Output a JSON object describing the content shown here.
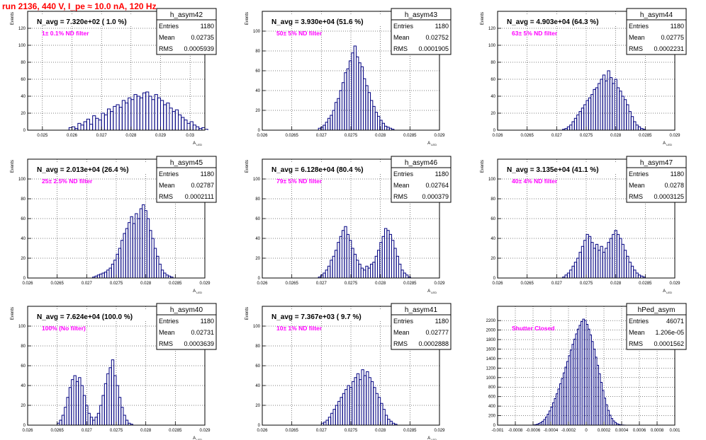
{
  "page": {
    "title": "run 2136,   440 V, I_pe ≈ 10.0 nA, 120 Hz"
  },
  "chart_data": [
    {
      "type": "histogram",
      "stat_title": "h_asym42",
      "header": "N_avg = 7.320e+02 ( 1.0 %)",
      "filter_label": "1± 0.1% ND filter",
      "stats": {
        "entries": "1180",
        "mean": "0.02735",
        "rms": "0.0005939"
      },
      "ylabel": "Events",
      "xlabel": "A_{LED}",
      "xlim": [
        0.0245,
        0.0305
      ],
      "ylim": [
        0,
        140
      ],
      "xticks": [
        0.025,
        0.026,
        0.027,
        0.028,
        0.029,
        0.03
      ],
      "xtick_labels": [
        "0.025",
        "0.026",
        "0.027",
        "0.028",
        "0.029",
        "0.03"
      ],
      "yticks": [
        0,
        20,
        40,
        60,
        80,
        100,
        120
      ],
      "bins": {
        "start": 0.0259,
        "width": 0.0001,
        "values": [
          3,
          4,
          2,
          8,
          6,
          10,
          13,
          7,
          17,
          14,
          12,
          20,
          18,
          25,
          22,
          28,
          30,
          27,
          35,
          32,
          38,
          36,
          42,
          40,
          38,
          44,
          45,
          40,
          36,
          42,
          38,
          35,
          30,
          32,
          26,
          22,
          24,
          18,
          15,
          12,
          8,
          10,
          6,
          4,
          2,
          3,
          1
        ]
      }
    },
    {
      "type": "histogram",
      "stat_title": "h_asym43",
      "header": "N_avg = 3.930e+04 (51.6 %)",
      "filter_label": "50± 5% ND filter",
      "stats": {
        "entries": "1180",
        "mean": "0.02752",
        "rms": "0.0001905"
      },
      "ylabel": "Events",
      "xlabel": "A_{LED}",
      "xlim": [
        0.026,
        0.029
      ],
      "ylim": [
        0,
        120
      ],
      "xticks": [
        0.026,
        0.0265,
        0.027,
        0.0275,
        0.028,
        0.0285,
        0.029
      ],
      "xtick_labels": [
        "0.026",
        "0.0265",
        "0.027",
        "0.0275",
        "0.028",
        "0.0285",
        "0.029"
      ],
      "yticks": [
        0,
        20,
        40,
        60,
        80,
        100
      ],
      "bins": {
        "start": 0.02695,
        "width": 4e-05,
        "values": [
          2,
          3,
          5,
          8,
          12,
          15,
          20,
          28,
          32,
          40,
          48,
          58,
          62,
          70,
          78,
          85,
          74,
          68,
          64,
          52,
          45,
          38,
          30,
          24,
          18,
          14,
          10,
          7,
          4,
          3,
          2,
          1
        ]
      }
    },
    {
      "type": "histogram",
      "stat_title": "h_asym44",
      "header": "N_avg = 4.903e+04 (64.3 %)",
      "filter_label": "63± 5% ND filter",
      "stats": {
        "entries": "1180",
        "mean": "0.02775",
        "rms": "0.0002231"
      },
      "ylabel": "Events",
      "xlabel": "A_{LED}",
      "xlim": [
        0.026,
        0.029
      ],
      "ylim": [
        0,
        140
      ],
      "xticks": [
        0.026,
        0.0265,
        0.027,
        0.0275,
        0.028,
        0.0285,
        0.029
      ],
      "xtick_labels": [
        "0.026",
        "0.0265",
        "0.027",
        "0.0275",
        "0.028",
        "0.0285",
        "0.029"
      ],
      "yticks": [
        0,
        20,
        40,
        60,
        80,
        100,
        120
      ],
      "bins": {
        "start": 0.0271,
        "width": 4e-05,
        "values": [
          1,
          2,
          4,
          6,
          10,
          14,
          18,
          22,
          26,
          30,
          35,
          38,
          42,
          48,
          50,
          55,
          60,
          65,
          58,
          70,
          62,
          55,
          60,
          50,
          46,
          40,
          36,
          30,
          22,
          16,
          10,
          6,
          4,
          2,
          1
        ]
      }
    },
    {
      "type": "histogram",
      "stat_title": "h_asym45",
      "header": "N_avg = 2.013e+04 (26.4 %)",
      "filter_label": "25± 2.5% ND filter",
      "stats": {
        "entries": "1180",
        "mean": "0.02787",
        "rms": "0.0002111"
      },
      "ylabel": "Events",
      "xlabel": "A_{LED}",
      "xlim": [
        0.026,
        0.029
      ],
      "ylim": [
        0,
        120
      ],
      "xticks": [
        0.026,
        0.0265,
        0.027,
        0.0275,
        0.028,
        0.0285,
        0.029
      ],
      "xtick_labels": [
        "0.026",
        "0.0265",
        "0.027",
        "0.0275",
        "0.028",
        "0.0285",
        "0.029"
      ],
      "yticks": [
        0,
        20,
        40,
        60,
        80,
        100
      ],
      "bins": {
        "start": 0.0271,
        "width": 4e-05,
        "values": [
          1,
          2,
          3,
          4,
          5,
          6,
          8,
          10,
          14,
          18,
          24,
          30,
          38,
          45,
          50,
          56,
          62,
          55,
          65,
          60,
          70,
          74,
          68,
          60,
          48,
          40,
          30,
          22,
          14,
          8,
          5,
          3,
          2,
          1
        ]
      }
    },
    {
      "type": "histogram",
      "stat_title": "h_asym46",
      "header": "N_avg = 6.128e+04 (80.4 %)",
      "filter_label": "79± 5% ND filter",
      "stats": {
        "entries": "1180",
        "mean": "0.02764",
        "rms": "0.000379"
      },
      "ylabel": "Events",
      "xlabel": "A_{LED}",
      "xlim": [
        0.026,
        0.029
      ],
      "ylim": [
        0,
        120
      ],
      "xticks": [
        0.026,
        0.0265,
        0.027,
        0.0275,
        0.028,
        0.0285,
        0.029
      ],
      "xtick_labels": [
        "0.026",
        "0.0265",
        "0.027",
        "0.0275",
        "0.028",
        "0.0285",
        "0.029"
      ],
      "yticks": [
        0,
        20,
        40,
        60,
        80,
        100
      ],
      "bins": {
        "start": 0.02695,
        "width": 4e-05,
        "values": [
          1,
          3,
          5,
          8,
          12,
          18,
          22,
          28,
          36,
          42,
          48,
          52,
          44,
          38,
          30,
          24,
          18,
          14,
          10,
          8,
          12,
          10,
          14,
          16,
          22,
          28,
          36,
          42,
          50,
          48,
          44,
          38,
          30,
          22,
          14,
          8,
          5,
          3,
          1
        ]
      }
    },
    {
      "type": "histogram",
      "stat_title": "h_asym47",
      "header": "N_avg = 3.135e+04 (41.1 %)",
      "filter_label": "40± 4% ND filter",
      "stats": {
        "entries": "1180",
        "mean": "0.0278",
        "rms": "0.0003125"
      },
      "ylabel": "Events",
      "xlabel": "A_{LED}",
      "xlim": [
        0.026,
        0.029
      ],
      "ylim": [
        0,
        120
      ],
      "xticks": [
        0.026,
        0.0265,
        0.027,
        0.0275,
        0.028,
        0.0285,
        0.029
      ],
      "xtick_labels": [
        "0.026",
        "0.0265",
        "0.027",
        "0.0275",
        "0.028",
        "0.0285",
        "0.029"
      ],
      "yticks": [
        0,
        20,
        40,
        60,
        80,
        100
      ],
      "bins": {
        "start": 0.0271,
        "width": 4e-05,
        "values": [
          1,
          3,
          5,
          8,
          12,
          16,
          20,
          26,
          32,
          38,
          44,
          42,
          36,
          30,
          34,
          28,
          32,
          26,
          30,
          36,
          40,
          44,
          48,
          44,
          40,
          34,
          28,
          22,
          16,
          12,
          8,
          5,
          3,
          2,
          1
        ]
      }
    },
    {
      "type": "histogram",
      "stat_title": "h_asym40",
      "header": "N_avg = 7.624e+04 (100.0 %)",
      "filter_label": "100% (No filter)",
      "stats": {
        "entries": "1180",
        "mean": "0.02731",
        "rms": "0.0003639"
      },
      "ylabel": "Events",
      "xlabel": "A_{LED}",
      "xlim": [
        0.026,
        0.029
      ],
      "ylim": [
        0,
        120
      ],
      "xticks": [
        0.026,
        0.0265,
        0.027,
        0.0275,
        0.028,
        0.0285,
        0.029
      ],
      "xtick_labels": [
        "0.026",
        "0.0265",
        "0.027",
        "0.0275",
        "0.028",
        "0.0285",
        "0.029"
      ],
      "yticks": [
        0,
        20,
        40,
        60,
        80,
        100
      ],
      "bins": {
        "start": 0.0265,
        "width": 4e-05,
        "values": [
          2,
          5,
          10,
          18,
          28,
          38,
          46,
          50,
          44,
          48,
          40,
          30,
          20,
          12,
          8,
          5,
          8,
          12,
          20,
          30,
          42,
          52,
          58,
          66,
          50,
          40,
          28,
          18,
          10,
          5,
          2,
          1
        ]
      }
    },
    {
      "type": "histogram",
      "stat_title": "h_asym41",
      "header": "N_avg = 7.367e+03 ( 9.7 %)",
      "filter_label": "10± 1% ND filter",
      "stats": {
        "entries": "1180",
        "mean": "0.02777",
        "rms": "0.0002888"
      },
      "ylabel": "Events",
      "xlabel": "A_{LED}",
      "xlim": [
        0.026,
        0.029
      ],
      "ylim": [
        0,
        120
      ],
      "xticks": [
        0.026,
        0.0265,
        0.027,
        0.0275,
        0.028,
        0.0285,
        0.029
      ],
      "xtick_labels": [
        "0.026",
        "0.0265",
        "0.027",
        "0.0275",
        "0.028",
        "0.0285",
        "0.029"
      ],
      "yticks": [
        0,
        20,
        40,
        60,
        80,
        100
      ],
      "bins": {
        "start": 0.027,
        "width": 4e-05,
        "values": [
          2,
          3,
          5,
          8,
          12,
          16,
          20,
          24,
          28,
          32,
          36,
          40,
          38,
          44,
          48,
          52,
          46,
          56,
          50,
          54,
          48,
          44,
          38,
          32,
          28,
          22,
          16,
          10,
          6,
          4,
          2,
          1
        ]
      }
    },
    {
      "type": "histogram",
      "stat_title": "hPed_asym",
      "header": "",
      "filter_label": "Shutter Closed",
      "stats": {
        "entries": "46071",
        "mean": "1.206e-05",
        "rms": "0.0001562"
      },
      "ylabel": "",
      "xlabel": "",
      "xlim": [
        -0.001,
        0.001
      ],
      "ylim": [
        0,
        2500
      ],
      "xticks": [
        -0.001,
        -0.0008,
        -0.0006,
        -0.0004,
        -0.0002,
        0,
        0.0002,
        0.0004,
        0.0006,
        0.0008,
        0.001
      ],
      "xtick_labels": [
        "-0.001",
        "-0.0008",
        "-0.0006",
        "-0.0004",
        "-0.0002",
        "0",
        "0.0002",
        "0.0004",
        "0.0006",
        "0.0008",
        "0.001"
      ],
      "yticks": [
        0,
        200,
        400,
        600,
        800,
        1000,
        1200,
        1400,
        1600,
        1800,
        2000,
        2200
      ],
      "bins": {
        "start": -0.0006,
        "width": 2e-05,
        "values": [
          5,
          10,
          20,
          35,
          55,
          80,
          120,
          170,
          230,
          300,
          380,
          470,
          560,
          660,
          760,
          870,
          980,
          1100,
          1220,
          1340,
          1460,
          1580,
          1700,
          1810,
          1920,
          2020,
          2100,
          2180,
          2230,
          2200,
          2120,
          2020,
          1900,
          1760,
          1600,
          1430,
          1260,
          1080,
          900,
          730,
          570,
          430,
          310,
          210,
          140,
          90,
          55,
          30,
          15,
          8,
          4,
          2
        ]
      }
    }
  ]
}
